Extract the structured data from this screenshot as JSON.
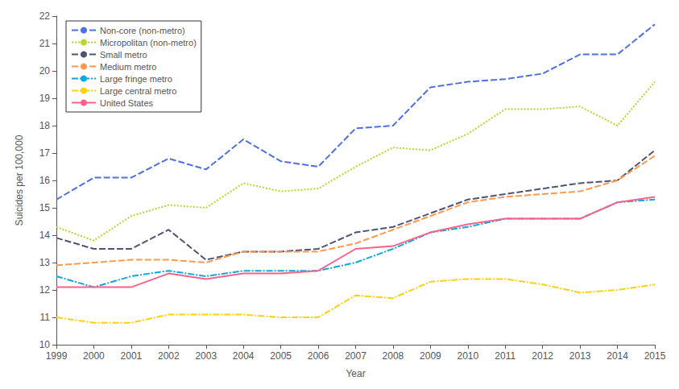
{
  "chart_data": {
    "type": "line",
    "xlabel": "Year",
    "ylabel": "Suicides per 100,000",
    "x": [
      1999,
      2000,
      2001,
      2002,
      2003,
      2004,
      2005,
      2006,
      2007,
      2008,
      2009,
      2010,
      2011,
      2012,
      2013,
      2014,
      2015
    ],
    "series": [
      {
        "name": "Non-core (non-metro)",
        "line_style": "dashed",
        "values": [
          15.3,
          16.1,
          16.1,
          16.8,
          16.4,
          17.5,
          16.7,
          16.5,
          17.9,
          18.0,
          19.4,
          19.6,
          19.7,
          19.9,
          20.6,
          20.6,
          21.7
        ]
      },
      {
        "name": "Micropolitan (non-metro)",
        "line_style": "dotted",
        "values": [
          14.3,
          13.8,
          14.7,
          15.1,
          15.0,
          15.9,
          15.6,
          15.7,
          16.5,
          17.2,
          17.1,
          17.7,
          18.6,
          18.6,
          18.7,
          18.0,
          19.6
        ]
      },
      {
        "name": "Small metro",
        "line_style": "dashed",
        "values": [
          13.9,
          13.5,
          13.5,
          14.2,
          13.1,
          13.4,
          13.4,
          13.5,
          14.1,
          14.3,
          14.8,
          15.3,
          15.5,
          15.7,
          15.9,
          16.0,
          17.1
        ]
      },
      {
        "name": "Medium metro",
        "line_style": "dashed",
        "values": [
          12.9,
          13.0,
          13.1,
          13.1,
          13.0,
          13.4,
          13.4,
          13.4,
          13.7,
          14.2,
          14.7,
          15.2,
          15.4,
          15.5,
          15.6,
          16.0,
          16.9
        ]
      },
      {
        "name": "Large fringe metro",
        "line_style": "dashdot",
        "values": [
          12.5,
          12.1,
          12.5,
          12.7,
          12.5,
          12.7,
          12.7,
          12.7,
          13.0,
          13.5,
          14.1,
          14.3,
          14.6,
          14.6,
          14.6,
          15.2,
          15.3
        ]
      },
      {
        "name": "Large central metro",
        "line_style": "dashdot",
        "values": [
          11.0,
          10.8,
          10.8,
          11.1,
          11.1,
          11.1,
          11.0,
          11.0,
          11.8,
          11.7,
          12.3,
          12.4,
          12.4,
          12.2,
          11.9,
          12.0,
          12.2
        ]
      },
      {
        "name": "United States",
        "line_style": "solid",
        "values": [
          12.1,
          12.1,
          12.1,
          12.6,
          12.4,
          12.6,
          12.6,
          12.7,
          13.5,
          13.6,
          14.1,
          14.4,
          14.6,
          14.6,
          14.6,
          15.2,
          15.4
        ]
      }
    ],
    "xlim": [
      1999,
      2015
    ],
    "xticks": [
      1999,
      2000,
      2001,
      2002,
      2003,
      2004,
      2005,
      2006,
      2007,
      2008,
      2009,
      2010,
      2011,
      2012,
      2013,
      2014,
      2015
    ],
    "ylim": [
      10,
      22
    ],
    "yticks": [
      10,
      11,
      12,
      13,
      14,
      15,
      16,
      17,
      18,
      19,
      20,
      21,
      22
    ],
    "grid": false,
    "legend": "upper left"
  }
}
